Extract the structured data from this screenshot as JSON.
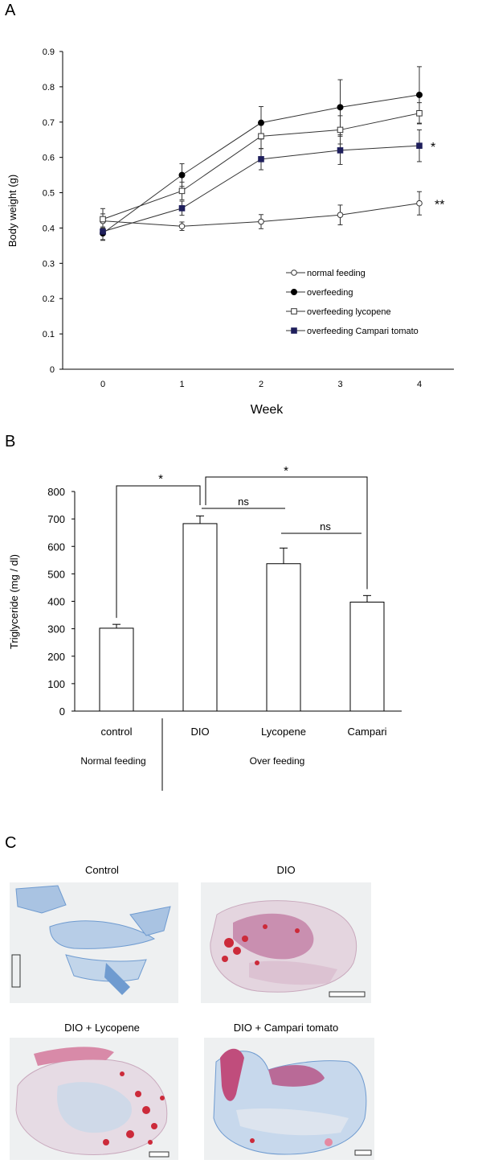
{
  "panels": {
    "a": "A",
    "b": "B",
    "c": "C"
  },
  "colors": {
    "axis": "#000000",
    "line": "#333333",
    "series_fill": "#1f1f5c",
    "bar_fill": "#ffffff",
    "stain_red": "#cc2a3a",
    "stain_blue": "#6f9bd0",
    "tissue_pink": "#d9a9c0",
    "bg_gray": "#e8ebee"
  },
  "chart_data": [
    {
      "type": "line",
      "xlabel": "Week",
      "ylabel": "Body weight (g)",
      "x": [
        0,
        1,
        2,
        3,
        4
      ],
      "xticks": [
        "0",
        "1",
        "2",
        "3",
        "4"
      ],
      "ylim": [
        0,
        0.9
      ],
      "yticks": [
        "0",
        "0.1",
        "0.2",
        "0.3",
        "0.4",
        "0.5",
        "0.6",
        "0.7",
        "0.8",
        "0.9"
      ],
      "grid": false,
      "legend_position": "bottom-right",
      "series": [
        {
          "name": "normal feeding",
          "marker": "open-circle",
          "values": [
            0.42,
            0.405,
            0.418,
            0.437,
            0.47
          ],
          "errors": [
            0.02,
            0.012,
            0.02,
            0.028,
            0.033
          ]
        },
        {
          "name": "overfeeding",
          "marker": "filled-circle",
          "values": [
            0.385,
            0.55,
            0.698,
            0.742,
            0.777
          ],
          "errors": [
            0.018,
            0.032,
            0.046,
            0.078,
            0.08
          ]
        },
        {
          "name": "overfeeding lycopene",
          "marker": "open-square",
          "values": [
            0.425,
            0.505,
            0.66,
            0.678,
            0.725
          ],
          "errors": [
            0.03,
            0.025,
            0.035,
            0.04,
            0.03
          ]
        },
        {
          "name": "overfeeding Campari tomato",
          "marker": "filled-square",
          "values": [
            0.39,
            0.456,
            0.595,
            0.62,
            0.633
          ],
          "errors": [
            0.025,
            0.02,
            0.03,
            0.04,
            0.045
          ]
        }
      ],
      "annotations": [
        {
          "text": "*",
          "series": "overfeeding Campari tomato"
        },
        {
          "text": "**",
          "series": "normal feeding"
        }
      ]
    },
    {
      "type": "bar",
      "ylabel": "Triglyceride (mg / dl)",
      "categories": [
        "control",
        "DIO",
        "Lycopene",
        "Campari"
      ],
      "values": [
        302,
        683,
        537,
        397
      ],
      "errors": [
        14,
        28,
        57,
        24
      ],
      "ylim": [
        0,
        800
      ],
      "yticks": [
        "0",
        "100",
        "200",
        "300",
        "400",
        "500",
        "600",
        "700",
        "800"
      ],
      "groups": [
        {
          "label": "Normal feeding",
          "categories": [
            "control"
          ]
        },
        {
          "label": "Over feeding",
          "categories": [
            "DIO",
            "Lycopene",
            "Campari"
          ]
        }
      ],
      "significance": [
        {
          "pair": [
            "control",
            "DIO"
          ],
          "label": "*"
        },
        {
          "pair": [
            "DIO",
            "Campari"
          ],
          "label": "*"
        },
        {
          "pair": [
            "DIO",
            "Lycopene"
          ],
          "label": "ns"
        },
        {
          "pair": [
            "Lycopene",
            "Campari"
          ],
          "label": "ns"
        }
      ]
    }
  ],
  "micrographs": [
    {
      "title": "Control"
    },
    {
      "title": "DIO"
    },
    {
      "title": "DIO + Lycopene"
    },
    {
      "title": "DIO + Campari tomato"
    }
  ]
}
